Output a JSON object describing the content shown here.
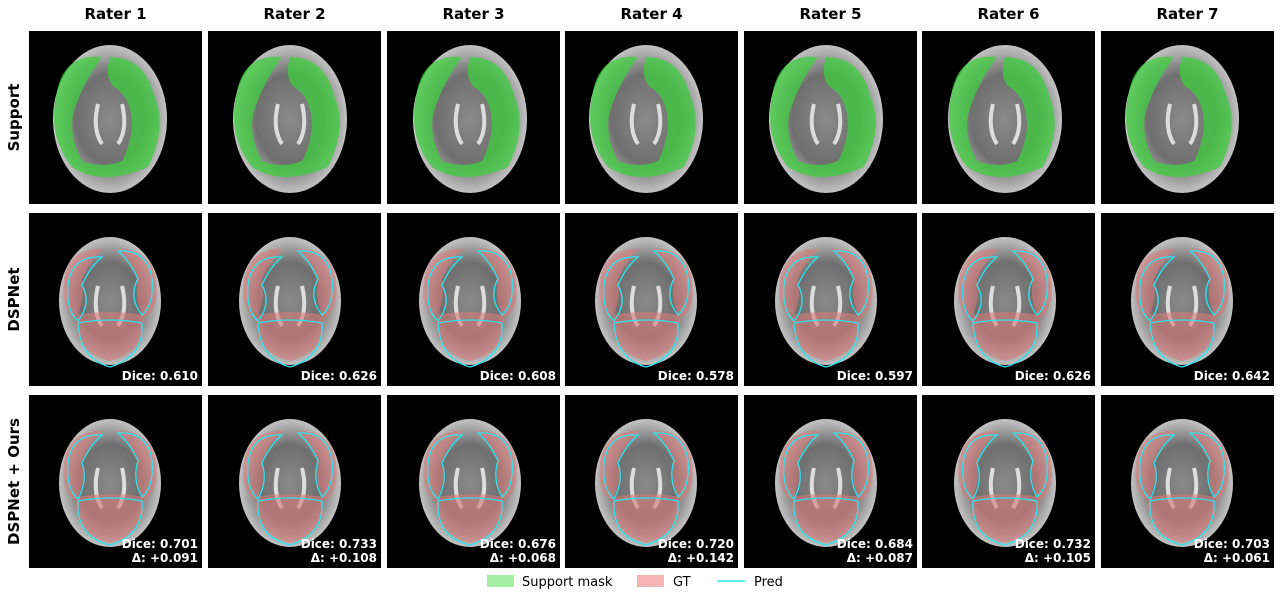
{
  "columns": [
    "Rater 1",
    "Rater 2",
    "Rater 3",
    "Rater 4",
    "Rater 5",
    "Rater 6",
    "Rater 7"
  ],
  "rows": [
    {
      "label": "Support"
    },
    {
      "label": "DSPNet",
      "dice": [
        "Dice: 0.610",
        "Dice: 0.626",
        "Dice: 0.608",
        "Dice: 0.578",
        "Dice: 0.597",
        "Dice: 0.626",
        "Dice: 0.642"
      ]
    },
    {
      "label": "DSPNet + Ours",
      "dice": [
        "Dice: 0.701",
        "Dice: 0.733",
        "Dice: 0.676",
        "Dice: 0.720",
        "Dice: 0.684",
        "Dice: 0.732",
        "Dice: 0.703"
      ],
      "delta": [
        "Δ: +0.091",
        "Δ: +0.108",
        "Δ: +0.068",
        "Δ: +0.142",
        "Δ: +0.087",
        "Δ: +0.105",
        "Δ: +0.061"
      ]
    }
  ],
  "legend": [
    "Support mask",
    "GT",
    "Pred"
  ]
}
